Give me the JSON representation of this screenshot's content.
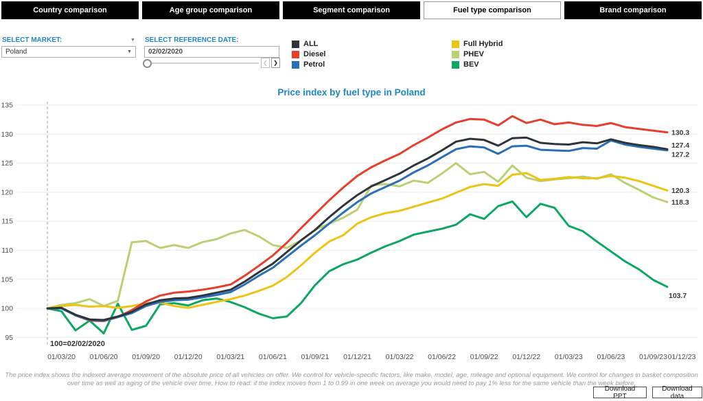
{
  "tabs": {
    "items": [
      {
        "label": "Country comparison",
        "active": false
      },
      {
        "label": "Age group comparison",
        "active": false
      },
      {
        "label": "Segment comparison",
        "active": false
      },
      {
        "label": "Fuel type comparison",
        "active": true
      },
      {
        "label": "Brand comparison",
        "active": false
      }
    ]
  },
  "controls": {
    "market_label": "SELECT MARKET:",
    "market_value": "Poland",
    "date_label": "SELECT REFERENCE DATE:",
    "date_value": "02/02/2020",
    "icons": {
      "dropdown_caret": "▼",
      "prev": "❮",
      "next": "❯"
    }
  },
  "legend": {
    "items": [
      {
        "name": "ALL",
        "color": "#2d343c"
      },
      {
        "name": "Diesel",
        "color": "#e73e2d"
      },
      {
        "name": "Petrol",
        "color": "#2a6fb7"
      },
      {
        "name": "Full Hybrid",
        "color": "#ecc414"
      },
      {
        "name": "PHEV",
        "color": "#b9d173"
      },
      {
        "name": "BEV",
        "color": "#0da763"
      }
    ]
  },
  "chart_data": {
    "type": "line",
    "title": "Price index by fuel type in Poland",
    "ylim": [
      95,
      135
    ],
    "ytick_step": 5,
    "grid": true,
    "annotation": "100=02/02/2020",
    "x_months": [
      "02/2020",
      "03/2020",
      "04/2020",
      "05/2020",
      "06/2020",
      "07/2020",
      "08/2020",
      "09/2020",
      "10/2020",
      "11/2020",
      "12/2020",
      "01/2021",
      "02/2021",
      "03/2021",
      "04/2021",
      "05/2021",
      "06/2021",
      "07/2021",
      "08/2021",
      "09/2021",
      "10/2021",
      "11/2021",
      "12/2021",
      "01/2022",
      "02/2022",
      "03/2022",
      "04/2022",
      "05/2022",
      "06/2022",
      "07/2022",
      "08/2022",
      "09/2022",
      "10/2022",
      "11/2022",
      "12/2022",
      "01/2023",
      "02/2023",
      "03/2023",
      "04/2023",
      "05/2023",
      "06/2023",
      "07/2023",
      "08/2023",
      "09/2023",
      "10/2023"
    ],
    "x_ticks": [
      {
        "label": "01/03/20",
        "i": 1
      },
      {
        "label": "01/06/20",
        "i": 4
      },
      {
        "label": "01/09/20",
        "i": 7
      },
      {
        "label": "01/12/20",
        "i": 10
      },
      {
        "label": "01/03/21",
        "i": 13
      },
      {
        "label": "01/06/21",
        "i": 16
      },
      {
        "label": "01/09/21",
        "i": 19
      },
      {
        "label": "01/12/21",
        "i": 22
      },
      {
        "label": "01/03/22",
        "i": 25
      },
      {
        "label": "01/06/22",
        "i": 28
      },
      {
        "label": "01/09/22",
        "i": 31
      },
      {
        "label": "01/12/22",
        "i": 34
      },
      {
        "label": "01/03/23",
        "i": 37
      },
      {
        "label": "01/06/23",
        "i": 40
      },
      {
        "label": "01/09/23",
        "i": 43
      },
      {
        "label": "01/12/23",
        "i": 46
      }
    ],
    "series": [
      {
        "name": "PHEV",
        "color": "#b9d173",
        "end_label": "118.3",
        "values": [
          100.0,
          100.6,
          100.9,
          101.6,
          100.4,
          101.3,
          111.4,
          111.6,
          110.4,
          110.9,
          110.4,
          111.4,
          111.9,
          112.9,
          113.5,
          112.4,
          110.9,
          110.4,
          111.7,
          113.5,
          114.6,
          115.6,
          117.0,
          121.2,
          121.4,
          121.0,
          122.0,
          121.6,
          123.2,
          125.0,
          123.1,
          123.5,
          121.8,
          124.6,
          122.5,
          121.9,
          122.2,
          122.4,
          122.7,
          122.3,
          123.1,
          121.6,
          120.4,
          119.1,
          118.3
        ]
      },
      {
        "name": "BEV",
        "color": "#0da763",
        "end_label": "103.7",
        "values": [
          100.0,
          99.5,
          96.2,
          97.9,
          95.7,
          100.8,
          96.3,
          97.0,
          100.7,
          100.9,
          100.5,
          101.4,
          101.7,
          101.1,
          100.2,
          99.1,
          98.3,
          98.6,
          100.9,
          104.0,
          106.4,
          107.6,
          108.4,
          109.6,
          110.7,
          111.6,
          112.7,
          113.2,
          113.7,
          114.4,
          116.2,
          115.4,
          117.6,
          118.4,
          115.7,
          118.0,
          117.3,
          114.2,
          113.3,
          111.5,
          109.8,
          108.1,
          106.7,
          104.9,
          103.7
        ]
      },
      {
        "name": "Full Hybrid",
        "color": "#ecc414",
        "end_label": "120.3",
        "values": [
          100.0,
          100.4,
          100.6,
          100.3,
          100.4,
          100.1,
          100.4,
          100.9,
          101.0,
          100.4,
          100.1,
          100.6,
          101.1,
          101.6,
          102.2,
          103.0,
          103.9,
          105.4,
          107.4,
          109.6,
          111.5,
          112.6,
          114.6,
          115.7,
          116.4,
          116.8,
          117.5,
          118.2,
          118.9,
          119.9,
          120.9,
          121.4,
          121.1,
          123.0,
          123.3,
          122.1,
          122.3,
          122.6,
          122.4,
          122.4,
          122.8,
          122.5,
          121.9,
          121.1,
          120.3
        ]
      },
      {
        "name": "Diesel",
        "color": "#e73e2d",
        "end_label": "130.3",
        "values": [
          100.0,
          100.1,
          98.8,
          97.9,
          97.8,
          98.5,
          99.7,
          101.2,
          102.2,
          102.7,
          102.9,
          103.2,
          103.6,
          104.1,
          105.6,
          107.3,
          109.1,
          111.3,
          113.8,
          116.2,
          118.6,
          120.8,
          122.8,
          124.3,
          125.5,
          126.6,
          128.1,
          129.4,
          130.8,
          132.0,
          132.6,
          132.5,
          131.5,
          133.1,
          131.9,
          132.5,
          131.7,
          132.0,
          131.6,
          131.4,
          131.9,
          131.2,
          130.9,
          130.6,
          130.3
        ]
      },
      {
        "name": "Petrol",
        "color": "#2a6fb7",
        "end_label": "127.2",
        "values": [
          100.0,
          100.0,
          98.8,
          98.0,
          97.9,
          98.5,
          99.2,
          100.4,
          101.1,
          101.4,
          101.5,
          101.9,
          102.3,
          102.8,
          104.1,
          105.6,
          107.0,
          108.9,
          110.8,
          112.6,
          114.6,
          116.5,
          118.3,
          119.8,
          120.9,
          122.0,
          123.4,
          124.6,
          126.0,
          127.4,
          127.9,
          127.7,
          126.6,
          127.9,
          128.0,
          127.3,
          127.2,
          127.1,
          127.6,
          127.5,
          128.9,
          128.2,
          127.8,
          127.5,
          127.2
        ]
      },
      {
        "name": "ALL",
        "color": "#2d343c",
        "end_label": "127.4",
        "values": [
          100.0,
          100.1,
          98.9,
          98.1,
          98.0,
          98.6,
          99.4,
          100.7,
          101.4,
          101.7,
          101.8,
          102.2,
          102.7,
          103.2,
          104.6,
          106.2,
          107.7,
          109.7,
          111.7,
          113.5,
          115.7,
          117.7,
          119.5,
          121.0,
          122.1,
          123.2,
          124.6,
          125.8,
          127.2,
          128.7,
          129.2,
          129.0,
          128.0,
          129.3,
          129.4,
          128.5,
          128.3,
          128.2,
          128.6,
          128.4,
          129.1,
          128.5,
          128.1,
          127.8,
          127.4
        ]
      }
    ]
  },
  "footer": {
    "note": "The price index shows the indexed average movement of the absolute price of all vehicles on offer. We control for vehicle-specific factors, like make, model, age, mileage and optional equipment. We control for changes in basket composition over time as well as aging of the vehicle over time. How to read: if the index moves from 1 to 0.99 in one week on average you would need to pay 1% less for the same vehicle than the week before."
  },
  "buttons": {
    "ppt": "Download PPT",
    "data": "Download data"
  }
}
